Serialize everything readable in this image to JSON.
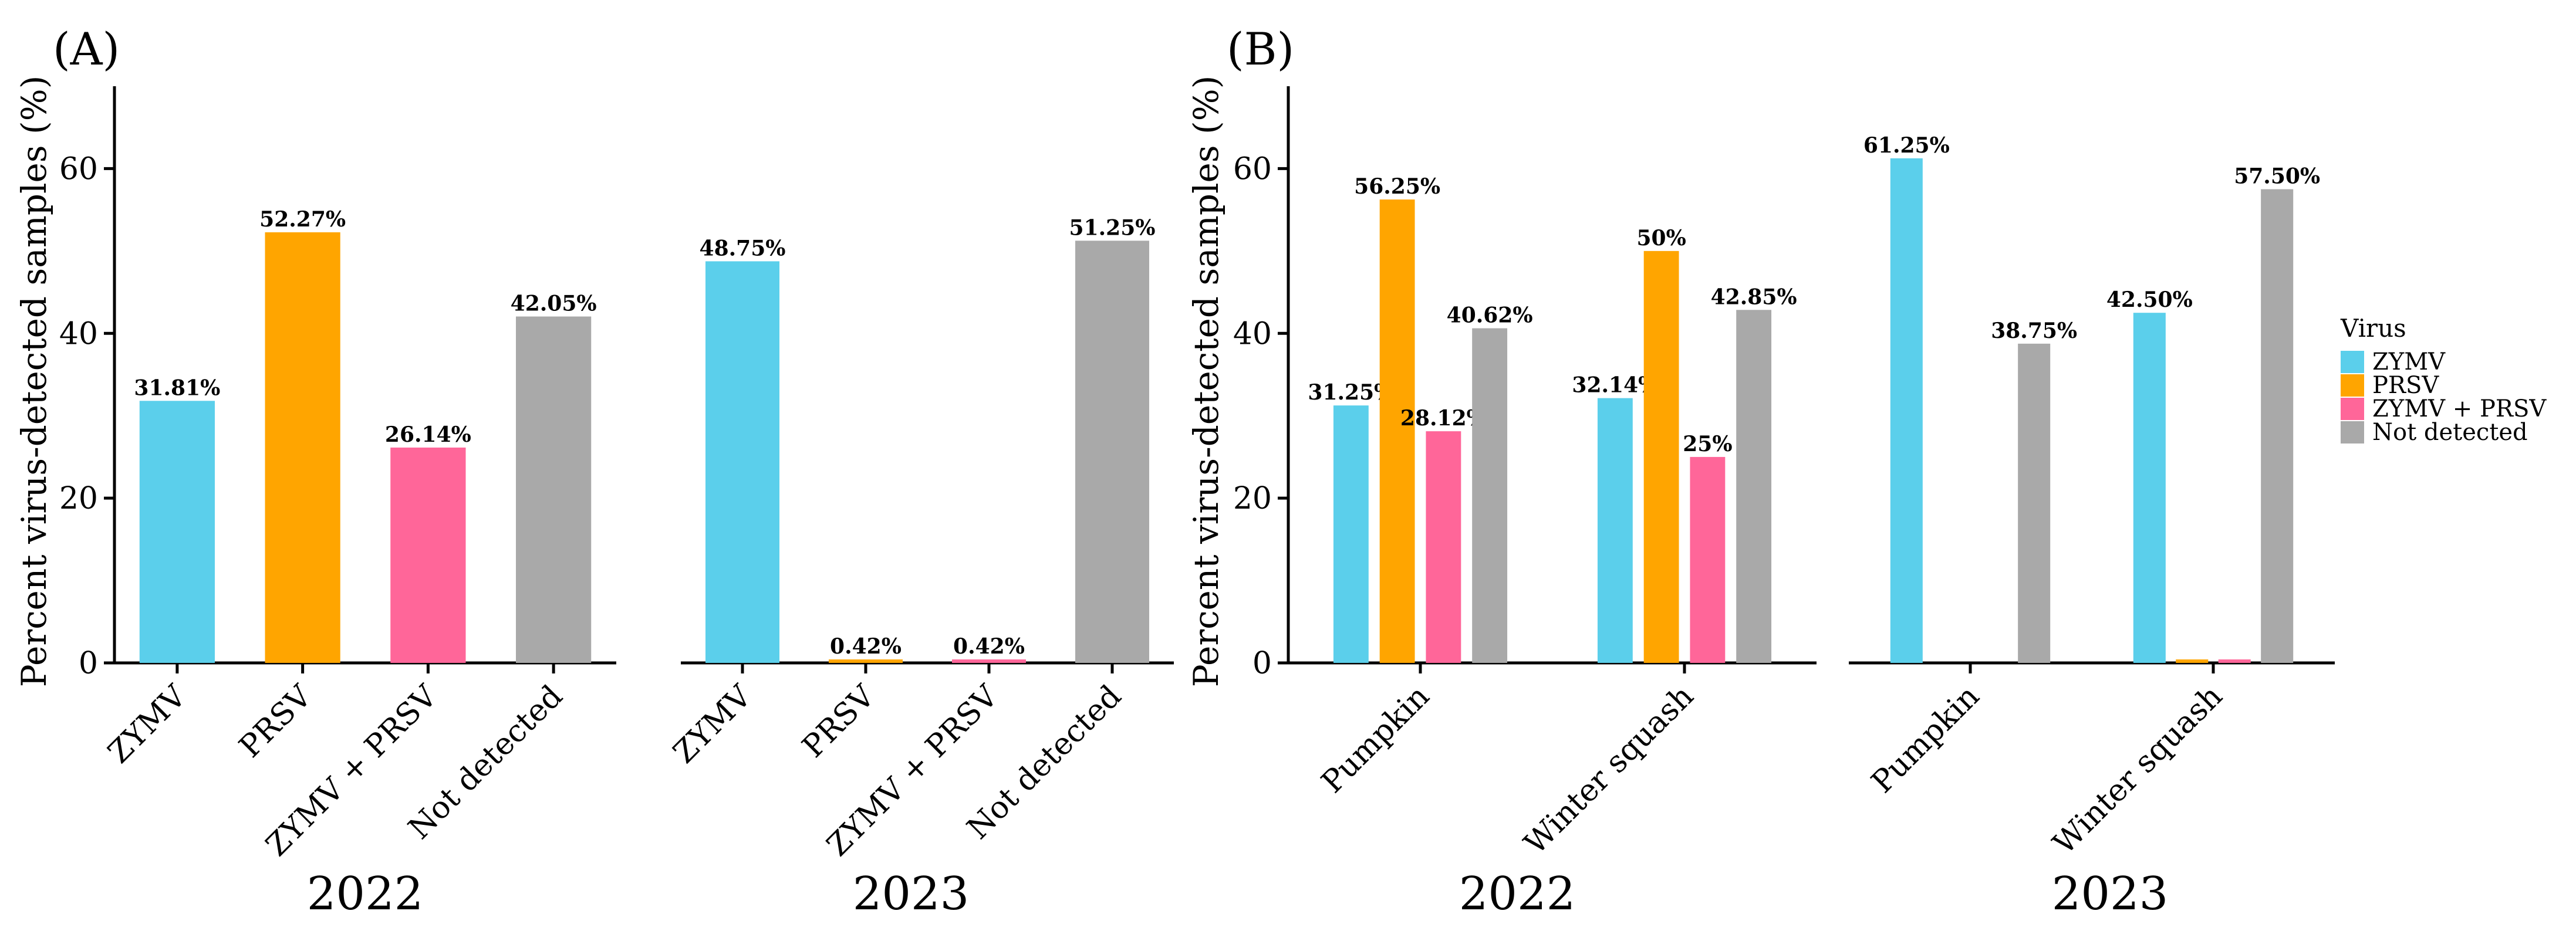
{
  "colors": {
    "ZYMV": "#5BCFEB",
    "PRSV": "#FFA500",
    "ZYMV + PRSV": "#FF6699",
    "Not detected": "#A9A9A9"
  },
  "chart_data": [
    {
      "panel": "(A)",
      "type": "bar",
      "ylabel": "Percent virus-detected samples (%)",
      "ylim": [
        0,
        70
      ],
      "yticks": [
        0,
        20,
        40,
        60
      ],
      "facets": [
        {
          "year": "2022",
          "categories": [
            "ZYMV",
            "PRSV",
            "ZYMV + PRSV",
            "Not detected"
          ],
          "values": [
            31.81,
            52.27,
            26.14,
            42.05
          ],
          "labels": [
            "31.81%",
            "52.27%",
            "26.14%",
            "42.05%"
          ]
        },
        {
          "year": "2023",
          "categories": [
            "ZYMV",
            "PRSV",
            "ZYMV + PRSV",
            "Not detected"
          ],
          "values": [
            48.75,
            0.42,
            0.42,
            51.25
          ],
          "labels": [
            "48.75%",
            "0.42%",
            "0.42%",
            "51.25%"
          ]
        }
      ]
    },
    {
      "panel": "(B)",
      "type": "bar",
      "ylabel": "Percent virus-detected samples (%)",
      "ylim": [
        0,
        70
      ],
      "yticks": [
        0,
        20,
        40,
        60
      ],
      "series_names": [
        "ZYMV",
        "PRSV",
        "ZYMV + PRSV",
        "Not detected"
      ],
      "facets": [
        {
          "year": "2022",
          "categories": [
            "Pumpkin",
            "Winter squash"
          ],
          "series": [
            {
              "name": "ZYMV",
              "values": [
                31.25,
                32.14
              ],
              "labels": [
                "31.25%",
                "32.14%"
              ]
            },
            {
              "name": "PRSV",
              "values": [
                56.25,
                50
              ],
              "labels": [
                "56.25%",
                "50%"
              ]
            },
            {
              "name": "ZYMV + PRSV",
              "values": [
                28.12,
                25
              ],
              "labels": [
                "28.12%",
                "25%"
              ]
            },
            {
              "name": "Not detected",
              "values": [
                40.62,
                42.85
              ],
              "labels": [
                "40.62%",
                "42.85%"
              ]
            }
          ]
        },
        {
          "year": "2023",
          "categories": [
            "Pumpkin",
            "Winter squash"
          ],
          "series": [
            {
              "name": "ZYMV",
              "values": [
                61.25,
                42.5
              ],
              "labels": [
                "61.25%",
                "42.50%"
              ]
            },
            {
              "name": "PRSV",
              "values": [
                null,
                0.42
              ],
              "labels": [
                "",
                ""
              ]
            },
            {
              "name": "ZYMV + PRSV",
              "values": [
                null,
                0.42
              ],
              "labels": [
                "",
                ""
              ]
            },
            {
              "name": "Not detected",
              "values": [
                38.75,
                57.5
              ],
              "labels": [
                "38.75%",
                "57.50%"
              ]
            }
          ]
        }
      ]
    }
  ],
  "legend": {
    "title": "Virus",
    "items": [
      "ZYMV",
      "PRSV",
      "ZYMV + PRSV",
      "Not detected"
    ]
  }
}
